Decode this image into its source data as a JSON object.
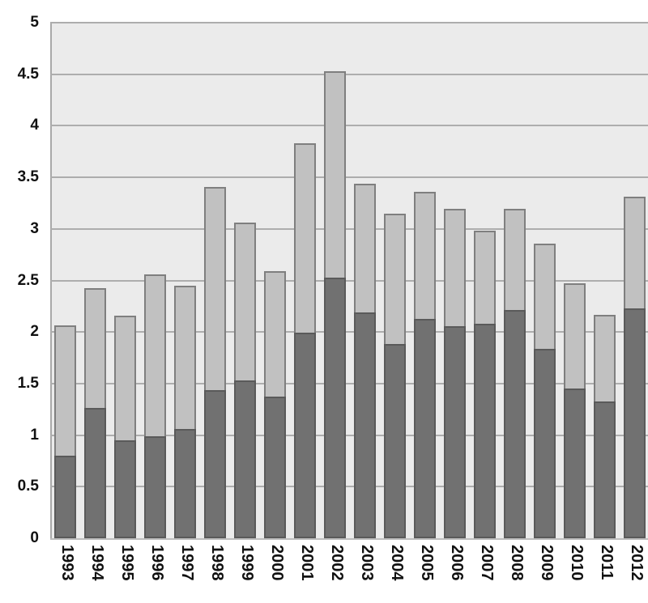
{
  "chart_data": {
    "type": "bar",
    "stacked": true,
    "title": "",
    "xlabel": "",
    "ylabel": "",
    "categories": [
      "1993",
      "1994",
      "1995",
      "1996",
      "1997",
      "1998",
      "1999",
      "2000",
      "2001",
      "2002",
      "2003",
      "2004",
      "2005",
      "2006",
      "2007",
      "2008",
      "2009",
      "2010",
      "2011",
      "2012"
    ],
    "series": [
      {
        "name": "bottom-dark-segment",
        "color": "#717171",
        "border_color": "#5A5A5A",
        "values": [
          0.8,
          1.26,
          0.95,
          0.99,
          1.06,
          1.44,
          1.53,
          1.37,
          1.99,
          2.53,
          2.19,
          1.88,
          2.13,
          2.06,
          2.08,
          2.21,
          1.84,
          1.45,
          1.33,
          2.23
        ]
      },
      {
        "name": "top-light-segment",
        "color": "#C1C1C1",
        "border_color": "#7F7F7F",
        "values": [
          1.26,
          1.16,
          1.21,
          1.57,
          1.39,
          1.97,
          1.53,
          1.22,
          1.84,
          2.0,
          1.25,
          1.26,
          1.23,
          1.14,
          0.9,
          0.98,
          1.02,
          1.02,
          0.84,
          1.08
        ]
      }
    ],
    "totals": [
      2.06,
      2.42,
      2.16,
      2.56,
      2.45,
      3.41,
      3.06,
      2.59,
      3.83,
      4.53,
      3.44,
      3.14,
      3.36,
      3.2,
      2.98,
      3.19,
      2.86,
      2.47,
      2.17,
      3.31
    ],
    "ylim": [
      0,
      5
    ],
    "ytick_step": 0.5,
    "yticks": [
      "0",
      "0.5",
      "1",
      "1.5",
      "2",
      "2.5",
      "3",
      "3.5",
      "4",
      "4.5",
      "5"
    ],
    "grid": true,
    "legend": "none",
    "plot_bg_color": "#EBEBEB",
    "gridline_color": "#ADADAD",
    "axis_line_color": "#BDBDBD",
    "tick_label_color": "#111111"
  }
}
